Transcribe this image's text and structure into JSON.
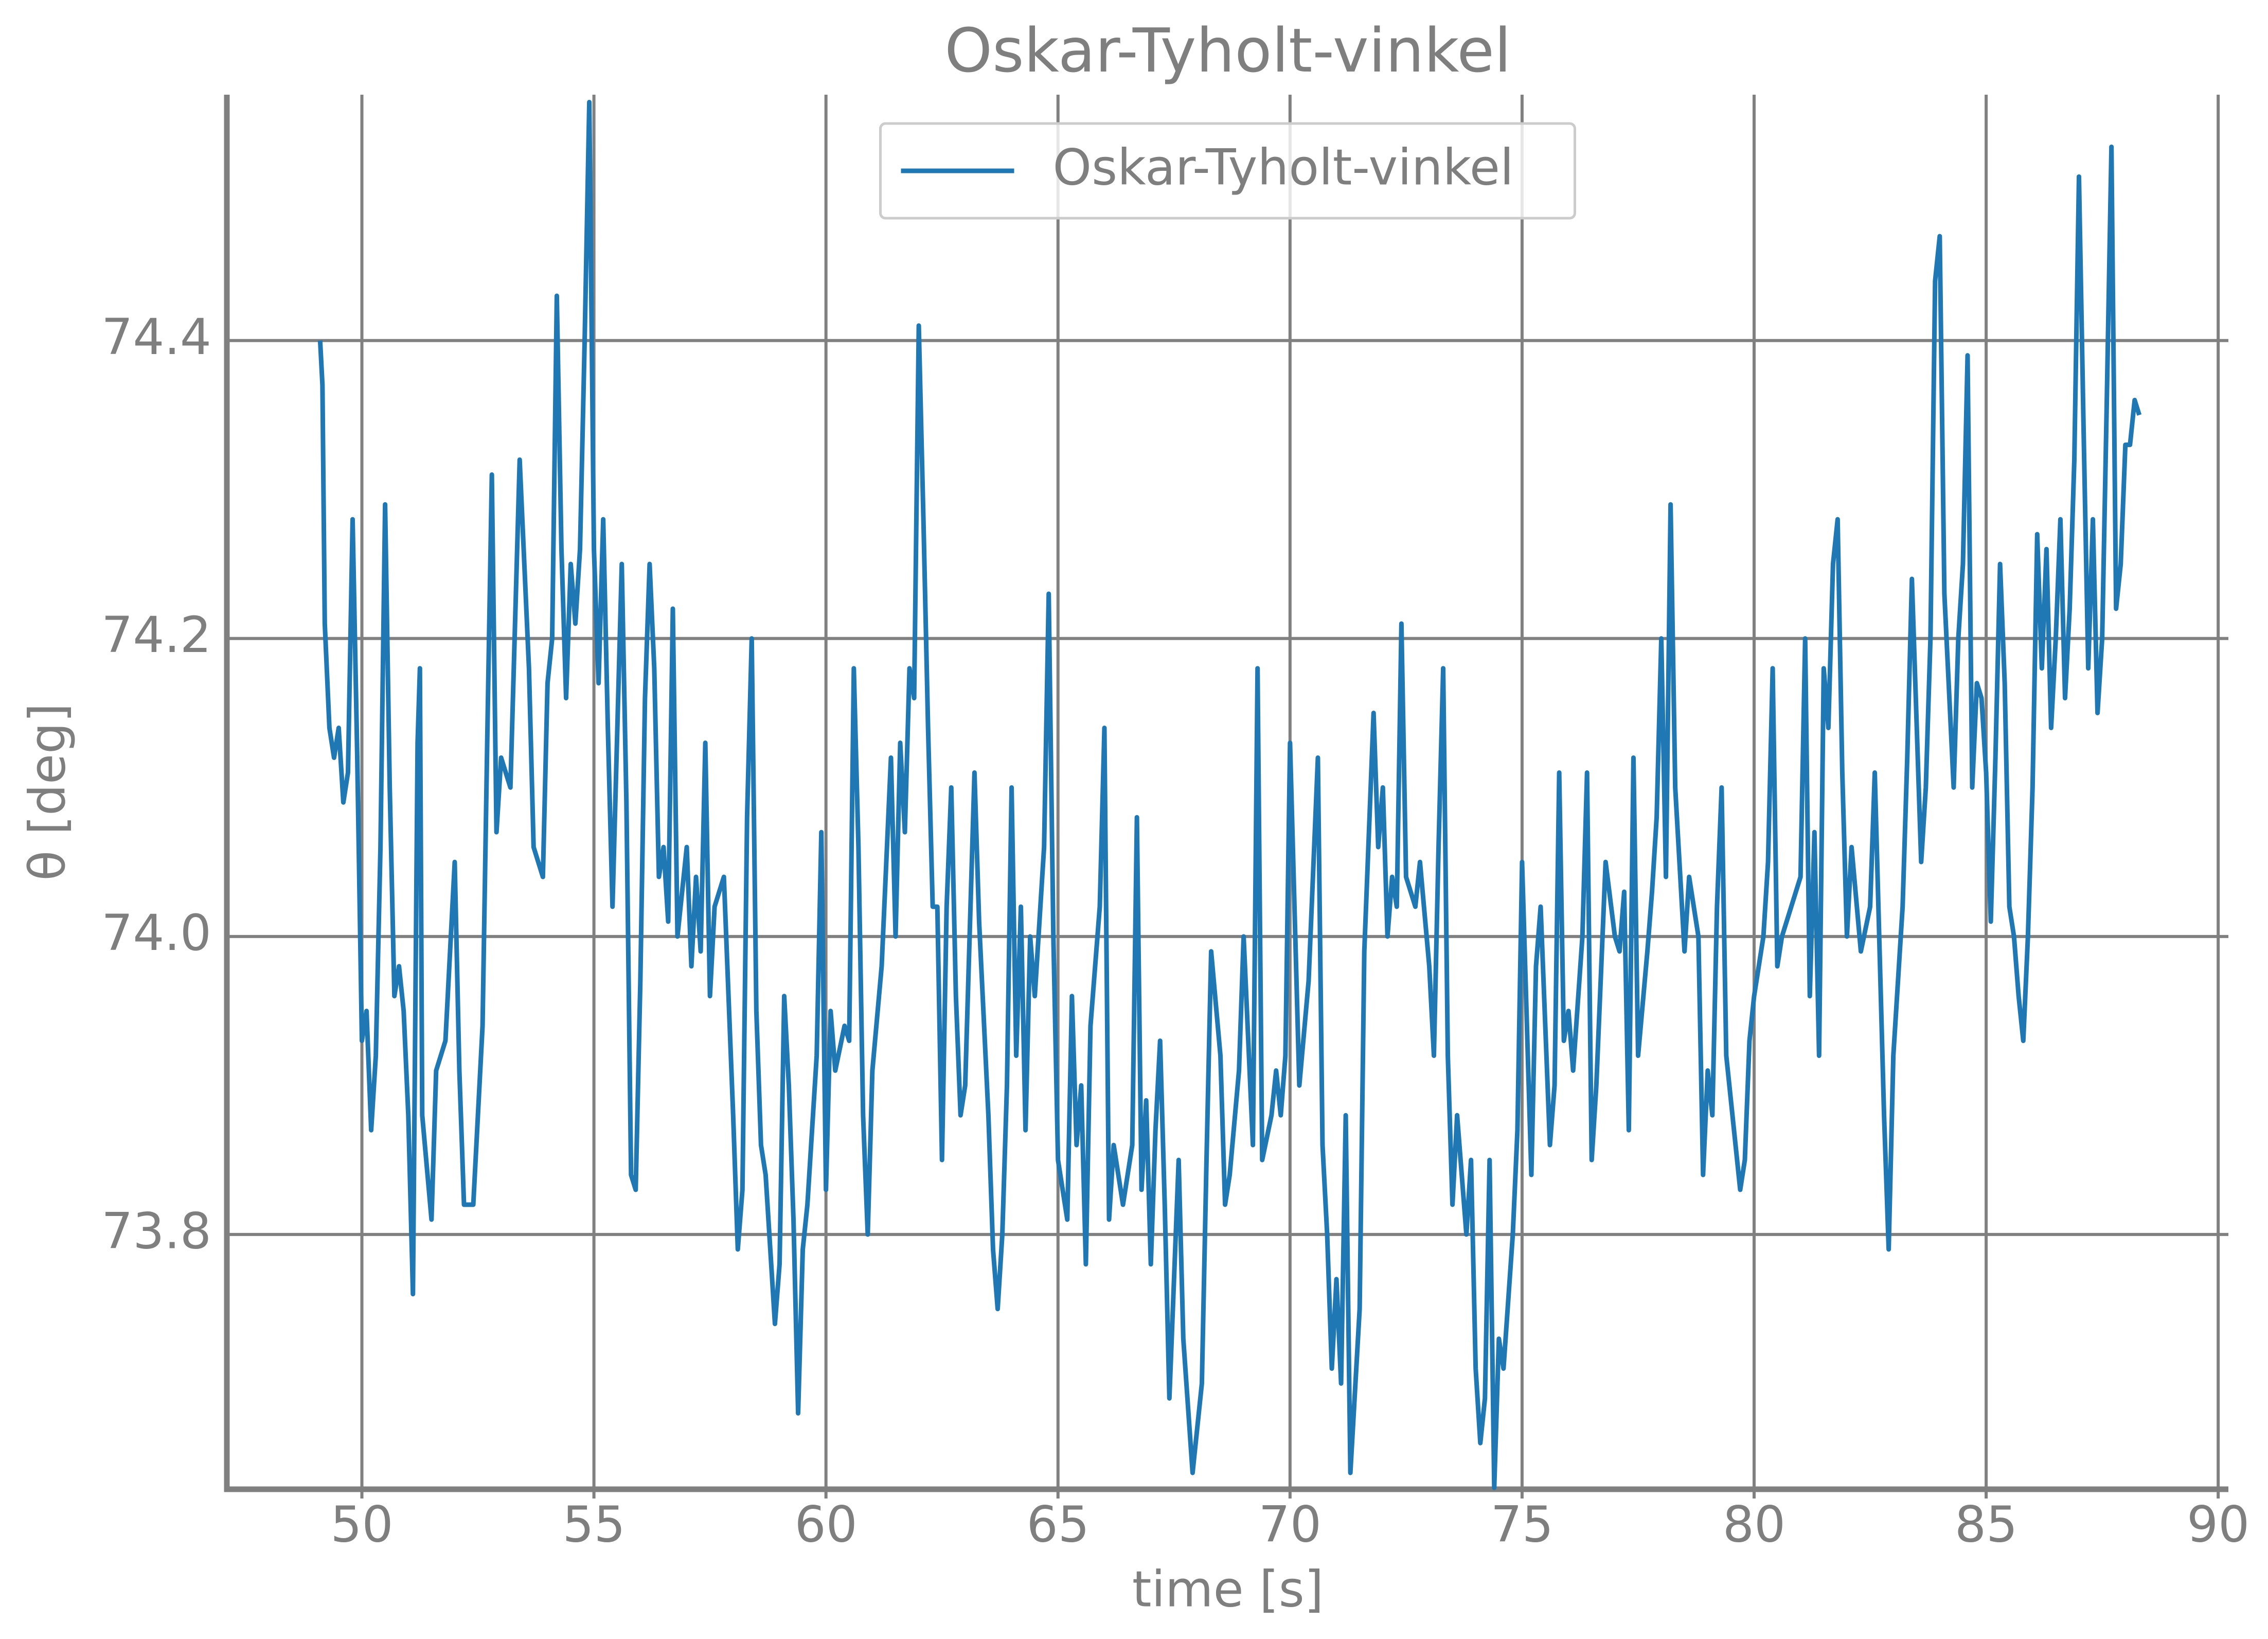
{
  "chart_data": {
    "type": "line",
    "title": "Oskar-Tyholt-vinkel",
    "x_label": "time [s]",
    "y_label": "θ [deg]",
    "xlim": [
      47.09,
      90.22
    ],
    "ylim": [
      73.629,
      74.565
    ],
    "xticks": [
      50,
      55,
      60,
      65,
      70,
      75,
      80,
      85,
      90
    ],
    "yticks": [
      73.8,
      {
        "value": 74,
        "label": "74.0"
      },
      74.2,
      74.4
    ],
    "grid": true,
    "legend": "upper center",
    "x": [
      49.1,
      49.15,
      49.2,
      49.3,
      49.4,
      49.5,
      49.6,
      49.7,
      49.8,
      49.9,
      50.0,
      50.1,
      50.2,
      50.3,
      50.4,
      50.5,
      50.6,
      50.7,
      50.8,
      50.9,
      51.0,
      51.1,
      51.2,
      51.25,
      51.3,
      51.5,
      51.6,
      51.8,
      52.0,
      52.1,
      52.2,
      52.4,
      52.6,
      52.7,
      52.8,
      52.9,
      53.0,
      53.2,
      53.4,
      53.6,
      53.7,
      53.9,
      54.0,
      54.1,
      54.2,
      54.3,
      54.4,
      54.5,
      54.6,
      54.7,
      54.8,
      54.9,
      55.0,
      55.1,
      55.2,
      55.3,
      55.4,
      55.6,
      55.7,
      55.8,
      55.9,
      56.0,
      56.1,
      56.2,
      56.3,
      56.4,
      56.5,
      56.6,
      56.7,
      56.8,
      57.0,
      57.1,
      57.2,
      57.3,
      57.4,
      57.5,
      57.6,
      57.8,
      58.0,
      58.1,
      58.2,
      58.3,
      58.4,
      58.5,
      58.6,
      58.7,
      58.9,
      59.0,
      59.1,
      59.2,
      59.3,
      59.4,
      59.5,
      59.6,
      59.8,
      59.9,
      60.0,
      60.1,
      60.2,
      60.4,
      60.5,
      60.6,
      60.7,
      60.8,
      60.9,
      61.0,
      61.2,
      61.3,
      61.4,
      61.5,
      61.6,
      61.7,
      61.8,
      61.9,
      62.0,
      62.1,
      62.2,
      62.3,
      62.4,
      62.5,
      62.6,
      62.7,
      62.8,
      62.9,
      63.0,
      63.2,
      63.3,
      63.5,
      63.6,
      63.7,
      63.8,
      63.9,
      64.0,
      64.1,
      64.2,
      64.3,
      64.4,
      64.5,
      64.7,
      64.8,
      64.9,
      65.0,
      65.2,
      65.3,
      65.4,
      65.5,
      65.6,
      65.7,
      65.9,
      66.0,
      66.1,
      66.2,
      66.4,
      66.5,
      66.6,
      66.7,
      66.8,
      66.9,
      67.0,
      67.1,
      67.2,
      67.3,
      67.4,
      67.6,
      67.7,
      67.9,
      68.1,
      68.2,
      68.3,
      68.5,
      68.6,
      68.7,
      68.9,
      69.0,
      69.2,
      69.3,
      69.4,
      69.6,
      69.7,
      69.8,
      69.9,
      70.0,
      70.2,
      70.4,
      70.6,
      70.7,
      70.8,
      70.9,
      71.0,
      71.1,
      71.2,
      71.3,
      71.5,
      71.6,
      71.8,
      71.9,
      72.0,
      72.1,
      72.2,
      72.3,
      72.4,
      72.5,
      72.7,
      72.8,
      73.0,
      73.1,
      73.2,
      73.3,
      73.4,
      73.5,
      73.6,
      73.8,
      73.9,
      74.0,
      74.1,
      74.2,
      74.3,
      74.4,
      74.5,
      74.6,
      74.8,
      74.9,
      75.0,
      75.2,
      75.3,
      75.4,
      75.6,
      75.7,
      75.8,
      75.9,
      76.0,
      76.1,
      76.3,
      76.4,
      76.5,
      76.6,
      76.8,
      77.0,
      77.1,
      77.2,
      77.3,
      77.4,
      77.5,
      77.7,
      77.8,
      77.9,
      78.0,
      78.1,
      78.2,
      78.3,
      78.5,
      78.6,
      78.8,
      78.9,
      79.0,
      79.1,
      79.2,
      79.3,
      79.4,
      79.6,
      79.7,
      79.8,
      79.9,
      80.0,
      80.2,
      80.3,
      80.4,
      80.5,
      80.6,
      80.8,
      81.0,
      81.1,
      81.2,
      81.3,
      81.4,
      81.5,
      81.6,
      81.7,
      81.8,
      81.9,
      82.0,
      82.1,
      82.3,
      82.5,
      82.6,
      82.8,
      82.9,
      83.0,
      83.2,
      83.3,
      83.4,
      83.6,
      83.7,
      83.8,
      83.9,
      84.0,
      84.1,
      84.3,
      84.4,
      84.5,
      84.6,
      84.7,
      84.8,
      84.9,
      85.0,
      85.1,
      85.2,
      85.3,
      85.4,
      85.5,
      85.6,
      85.7,
      85.8,
      85.9,
      86.0,
      86.1,
      86.2,
      86.3,
      86.4,
      86.5,
      86.6,
      86.7,
      86.8,
      86.9,
      87.0,
      87.1,
      87.2,
      87.3,
      87.4,
      87.5,
      87.6,
      87.7,
      87.8,
      87.9,
      88.0,
      88.1,
      88.2,
      88.3
    ],
    "series": [
      {
        "name": "Oskar-Tyholt-vinkel",
        "color": "#1f77b4",
        "values": [
          74.4,
          74.37,
          74.21,
          74.14,
          74.12,
          74.14,
          74.09,
          74.11,
          74.28,
          74.12,
          73.93,
          73.95,
          73.87,
          73.92,
          74.06,
          74.29,
          74.1,
          73.96,
          73.98,
          73.95,
          73.88,
          73.76,
          74.13,
          74.18,
          73.88,
          73.81,
          73.91,
          73.93,
          74.05,
          73.91,
          73.82,
          73.82,
          73.94,
          74.13,
          74.31,
          74.07,
          74.12,
          74.1,
          74.32,
          74.18,
          74.06,
          74.04,
          74.17,
          74.2,
          74.43,
          74.26,
          74.16,
          74.25,
          74.21,
          74.26,
          74.4,
          74.56,
          74.26,
          74.17,
          74.28,
          74.14,
          74.02,
          74.25,
          74.09,
          73.84,
          73.83,
          73.97,
          74.16,
          74.25,
          74.18,
          74.04,
          74.06,
          74.01,
          74.22,
          74.0,
          74.06,
          73.98,
          74.04,
          73.99,
          74.13,
          73.96,
          74.02,
          74.04,
          73.88,
          73.79,
          73.83,
          74.08,
          74.2,
          73.95,
          73.86,
          73.84,
          73.74,
          73.78,
          73.96,
          73.9,
          73.81,
          73.68,
          73.79,
          73.82,
          73.92,
          74.07,
          73.83,
          73.95,
          73.91,
          73.94,
          73.93,
          74.18,
          74.06,
          73.88,
          73.8,
          73.91,
          73.98,
          74.05,
          74.12,
          74.0,
          74.13,
          74.07,
          74.18,
          74.16,
          74.41,
          74.28,
          74.14,
          74.02,
          74.02,
          73.85,
          74.02,
          74.1,
          73.96,
          73.88,
          73.9,
          74.11,
          74.01,
          73.88,
          73.79,
          73.75,
          73.8,
          73.9,
          74.1,
          73.92,
          74.02,
          73.87,
          74.0,
          73.96,
          74.06,
          74.23,
          74.0,
          73.85,
          73.81,
          73.96,
          73.86,
          73.9,
          73.78,
          73.94,
          74.02,
          74.14,
          73.81,
          73.86,
          73.82,
          73.84,
          73.86,
          74.08,
          73.83,
          73.89,
          73.78,
          73.87,
          73.93,
          73.82,
          73.69,
          73.85,
          73.73,
          73.64,
          73.7,
          73.85,
          73.99,
          73.92,
          73.82,
          73.84,
          73.91,
          74.0,
          73.86,
          74.18,
          73.85,
          73.88,
          73.91,
          73.88,
          73.92,
          74.13,
          73.9,
          73.97,
          74.12,
          73.86,
          73.8,
          73.71,
          73.77,
          73.7,
          73.88,
          73.64,
          73.75,
          73.99,
          74.15,
          74.06,
          74.1,
          74.0,
          74.04,
          74.02,
          74.21,
          74.04,
          74.02,
          74.05,
          73.98,
          73.92,
          74.06,
          74.18,
          73.92,
          73.82,
          73.88,
          73.8,
          73.85,
          73.71,
          73.66,
          73.69,
          73.85,
          73.63,
          73.73,
          73.71,
          73.8,
          73.87,
          74.05,
          73.84,
          73.98,
          74.02,
          73.86,
          73.9,
          74.11,
          73.93,
          73.95,
          73.91,
          74.0,
          74.11,
          73.85,
          73.9,
          74.05,
          74.0,
          73.99,
          74.03,
          73.87,
          74.12,
          73.92,
          73.99,
          74.03,
          74.08,
          74.2,
          74.04,
          74.29,
          74.1,
          73.99,
          74.04,
          74.0,
          73.84,
          73.91,
          73.88,
          74.02,
          74.1,
          73.92,
          73.86,
          73.83,
          73.85,
          73.93,
          73.96,
          74.0,
          74.05,
          74.18,
          73.98,
          74.0,
          74.02,
          74.04,
          74.2,
          73.96,
          74.07,
          73.92,
          74.18,
          74.14,
          74.25,
          74.28,
          74.11,
          74.0,
          74.06,
          73.99,
          74.02,
          74.11,
          73.88,
          73.79,
          73.92,
          74.02,
          74.12,
          74.24,
          74.05,
          74.1,
          74.2,
          74.44,
          74.47,
          74.23,
          74.1,
          74.2,
          74.25,
          74.39,
          74.1,
          74.17,
          74.16,
          74.11,
          74.01,
          74.12,
          74.25,
          74.17,
          74.02,
          74.0,
          73.96,
          73.93,
          74.0,
          74.1,
          74.27,
          74.18,
          74.26,
          74.14,
          74.2,
          74.28,
          74.16,
          74.22,
          74.32,
          74.51,
          74.34,
          74.18,
          74.28,
          74.15,
          74.2,
          74.36,
          74.53,
          74.22,
          74.25,
          74.33,
          74.33,
          74.36,
          74.35
        ]
      }
    ]
  }
}
